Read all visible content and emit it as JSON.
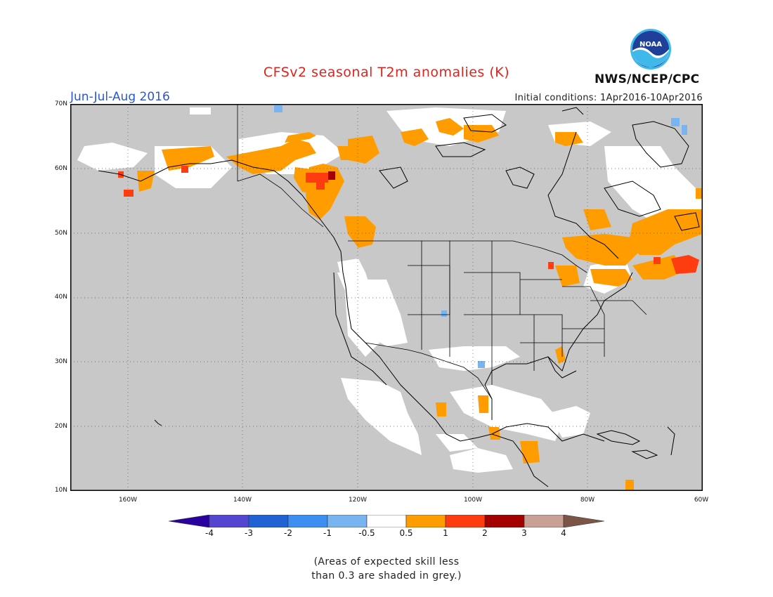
{
  "header": {
    "title": "CFSv2 seasonal T2m anomalies (K)",
    "season": "Jun-Jul-Aug 2016",
    "initial_conditions": "Initial conditions: 1Apr2016-10Apr2016",
    "agency": "NWS/NCEP/CPC",
    "logo_text": "NOAA"
  },
  "map": {
    "region": "North America",
    "lat_range": [
      10,
      70
    ],
    "lon_range": [
      -170,
      -60
    ],
    "lat_labels": [
      "70N",
      "60N",
      "50N",
      "40N",
      "30N",
      "20N",
      "10N"
    ],
    "lon_labels": [
      "160W",
      "140W",
      "120W",
      "100W",
      "80W",
      "60W"
    ],
    "grid": "dotted",
    "colors": {
      "background_no_skill": "#c8c8c8",
      "neutral": "#ffffff",
      "warm_0_5_1": "#ff9c00",
      "warm_1_2": "#ff3b10",
      "warm_2_3": "#a50000",
      "cool_-1_-0_5": "#78b4f0"
    }
  },
  "colorbar": {
    "labels": [
      "-4",
      "-3",
      "-2",
      "-1",
      "-0.5",
      "0.5",
      "1",
      "2",
      "3",
      "4"
    ],
    "colors": [
      "#2a009e",
      "#5546d2",
      "#2062d4",
      "#3c8ef0",
      "#78b4f0",
      "#ffffff",
      "#ff9c00",
      "#ff3b10",
      "#a50000",
      "#c8a096",
      "#7c5546"
    ]
  },
  "footnote": {
    "line1": "(Areas of expected skill less",
    "line2": "than 0.3 are shaded in grey.)"
  }
}
